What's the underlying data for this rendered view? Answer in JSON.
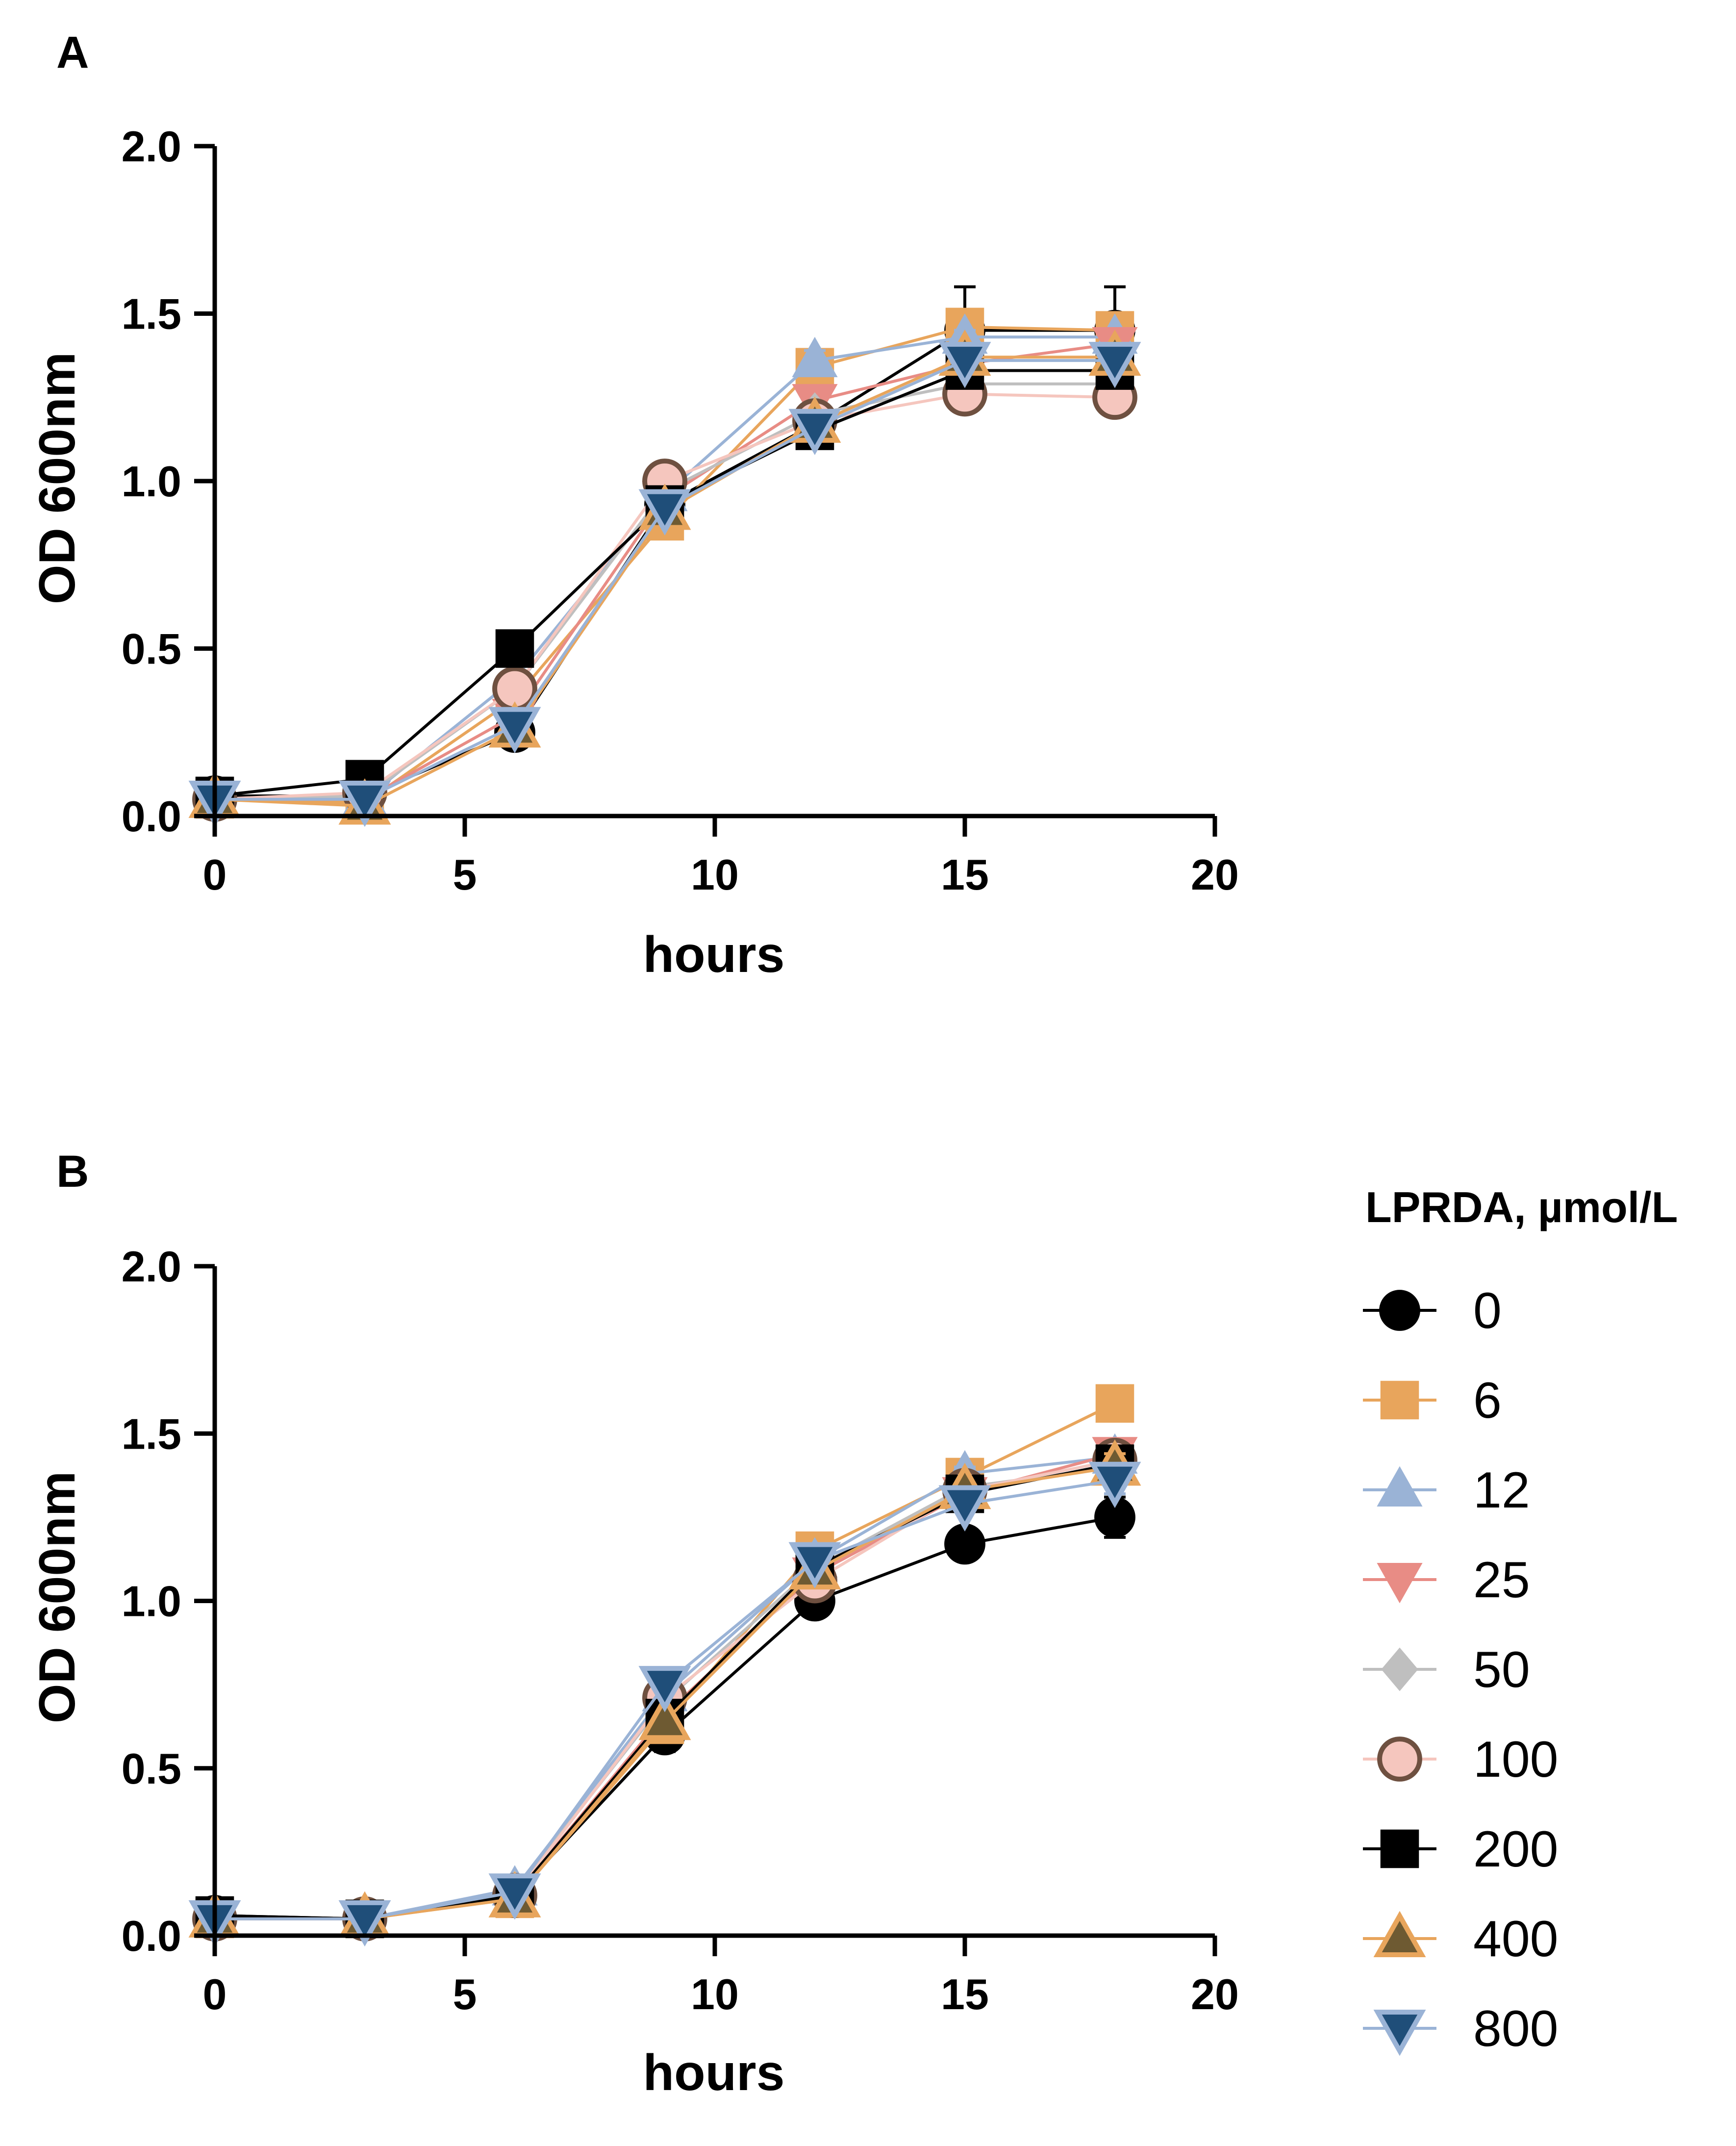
{
  "legend": {
    "title": "LPRDA, µmol/L",
    "entries": [
      {
        "label": "0",
        "color": "#000000",
        "edge": "#000000",
        "marker": "circle",
        "line": "#000000"
      },
      {
        "label": "6",
        "color": "#E8A55C",
        "edge": "#E8A55C",
        "marker": "square",
        "line": "#E8A55C"
      },
      {
        "label": "12",
        "color": "#9AB3D6",
        "edge": "#9AB3D6",
        "marker": "triangle-up",
        "line": "#9AB3D6"
      },
      {
        "label": "25",
        "color": "#E88C85",
        "edge": "#E88C85",
        "marker": "triangle-down",
        "line": "#E88C85"
      },
      {
        "label": "50",
        "color": "#BFBFBF",
        "edge": "#BFBFBF",
        "marker": "diamond",
        "line": "#BFBFBF"
      },
      {
        "label": "100",
        "color": "#F5C6BE",
        "edge": "#6E5040",
        "marker": "circle",
        "line": "#F5C6BE"
      },
      {
        "label": "200",
        "color": "#000000",
        "edge": "#000000",
        "marker": "square",
        "line": "#000000"
      },
      {
        "label": "400",
        "color": "#6E5A32",
        "edge": "#E8A55C",
        "marker": "triangle-up",
        "line": "#E8A55C"
      },
      {
        "label": "800",
        "color": "#1F4E79",
        "edge": "#9AB3D6",
        "marker": "triangle-down",
        "line": "#9AB3D6"
      }
    ]
  },
  "chart_data": [
    {
      "panel": "A",
      "type": "line",
      "xlabel": "hours",
      "ylabel": "OD 600nm",
      "xlim": [
        0,
        20
      ],
      "ylim": [
        0,
        2.0
      ],
      "xticks": [
        "0",
        "5",
        "10",
        "15",
        "20"
      ],
      "yticks": [
        "0.0",
        "0.5",
        "1.0",
        "1.5",
        "2.0"
      ],
      "x": [
        0,
        3,
        6,
        9,
        12,
        15,
        18
      ],
      "series": [
        {
          "name": "0",
          "values": [
            0.06,
            0.06,
            0.25,
            0.93,
            1.17,
            1.45,
            1.45
          ],
          "errors": [
            0.01,
            0.01,
            0.02,
            0.03,
            0.03,
            0.13,
            0.13
          ]
        },
        {
          "name": "6",
          "values": [
            0.05,
            0.04,
            0.35,
            0.88,
            1.34,
            1.46,
            1.45
          ],
          "errors": [
            0.01,
            0.01,
            0.02,
            0.02,
            0.02,
            0.02,
            0.02
          ]
        },
        {
          "name": "12",
          "values": [
            0.05,
            0.05,
            0.41,
            0.96,
            1.36,
            1.43,
            1.43
          ],
          "errors": [
            0.01,
            0.01,
            0.02,
            0.02,
            0.03,
            0.02,
            0.02
          ]
        },
        {
          "name": "25",
          "values": [
            0.05,
            0.05,
            0.3,
            0.95,
            1.24,
            1.35,
            1.41
          ],
          "errors": [
            0.01,
            0.01,
            0.02,
            0.02,
            0.02,
            0.02,
            0.02
          ]
        },
        {
          "name": "50",
          "values": [
            0.05,
            0.06,
            0.38,
            0.97,
            1.2,
            1.29,
            1.29
          ],
          "errors": [
            0.01,
            0.01,
            0.02,
            0.02,
            0.02,
            0.02,
            0.02
          ]
        },
        {
          "name": "100",
          "values": [
            0.05,
            0.07,
            0.38,
            1.0,
            1.18,
            1.26,
            1.25
          ],
          "errors": [
            0.01,
            0.01,
            0.02,
            0.02,
            0.02,
            0.02,
            0.02
          ]
        },
        {
          "name": "200",
          "values": [
            0.06,
            0.11,
            0.5,
            0.93,
            1.15,
            1.33,
            1.33
          ],
          "errors": [
            0.01,
            0.01,
            0.02,
            0.02,
            0.02,
            0.02,
            0.02
          ]
        },
        {
          "name": "400",
          "values": [
            0.05,
            0.03,
            0.26,
            0.91,
            1.17,
            1.37,
            1.37
          ],
          "errors": [
            0.01,
            0.01,
            0.02,
            0.02,
            0.02,
            0.02,
            0.02
          ]
        },
        {
          "name": "800",
          "values": [
            0.05,
            0.05,
            0.27,
            0.92,
            1.16,
            1.36,
            1.36
          ],
          "errors": [
            0.01,
            0.01,
            0.02,
            0.02,
            0.02,
            0.02,
            0.02
          ]
        }
      ]
    },
    {
      "panel": "B",
      "type": "line",
      "xlabel": "hours",
      "ylabel": "OD 600nm",
      "xlim": [
        0,
        20
      ],
      "ylim": [
        0,
        2.0
      ],
      "xticks": [
        "0",
        "5",
        "10",
        "15",
        "20"
      ],
      "yticks": [
        "0.0",
        "0.5",
        "1.0",
        "1.5",
        "2.0"
      ],
      "x": [
        0,
        3,
        6,
        9,
        12,
        15,
        18
      ],
      "series": [
        {
          "name": "0",
          "values": [
            0.06,
            0.05,
            0.12,
            0.6,
            1.0,
            1.17,
            1.25
          ],
          "errors": [
            0.01,
            0.01,
            0.01,
            0.05,
            0.02,
            0.02,
            0.06
          ]
        },
        {
          "name": "6",
          "values": [
            0.05,
            0.05,
            0.11,
            0.63,
            1.15,
            1.37,
            1.59
          ],
          "errors": [
            0.01,
            0.01,
            0.01,
            0.02,
            0.02,
            0.02,
            0.04
          ]
        },
        {
          "name": "12",
          "values": [
            0.05,
            0.05,
            0.14,
            0.72,
            1.12,
            1.38,
            1.43
          ],
          "errors": [
            0.01,
            0.01,
            0.01,
            0.02,
            0.02,
            0.02,
            0.04
          ]
        },
        {
          "name": "25",
          "values": [
            0.05,
            0.05,
            0.12,
            0.66,
            1.08,
            1.32,
            1.44
          ],
          "errors": [
            0.01,
            0.01,
            0.01,
            0.02,
            0.02,
            0.02,
            0.04
          ]
        },
        {
          "name": "50",
          "values": [
            0.05,
            0.05,
            0.13,
            0.7,
            1.1,
            1.34,
            1.4
          ],
          "errors": [
            0.01,
            0.01,
            0.01,
            0.02,
            0.02,
            0.02,
            0.04
          ]
        },
        {
          "name": "100",
          "values": [
            0.05,
            0.05,
            0.12,
            0.71,
            1.06,
            1.33,
            1.42
          ],
          "errors": [
            0.01,
            0.01,
            0.01,
            0.02,
            0.02,
            0.02,
            0.04
          ]
        },
        {
          "name": "200",
          "values": [
            0.06,
            0.05,
            0.12,
            0.65,
            1.1,
            1.32,
            1.41
          ],
          "errors": [
            0.01,
            0.01,
            0.01,
            0.02,
            0.02,
            0.02,
            0.04
          ]
        },
        {
          "name": "400",
          "values": [
            0.05,
            0.05,
            0.11,
            0.64,
            1.09,
            1.33,
            1.4
          ],
          "errors": [
            0.01,
            0.01,
            0.01,
            0.02,
            0.02,
            0.02,
            0.04
          ]
        },
        {
          "name": "800",
          "values": [
            0.05,
            0.05,
            0.13,
            0.75,
            1.12,
            1.29,
            1.36
          ],
          "errors": [
            0.01,
            0.01,
            0.01,
            0.02,
            0.02,
            0.02,
            0.04
          ]
        }
      ]
    }
  ]
}
